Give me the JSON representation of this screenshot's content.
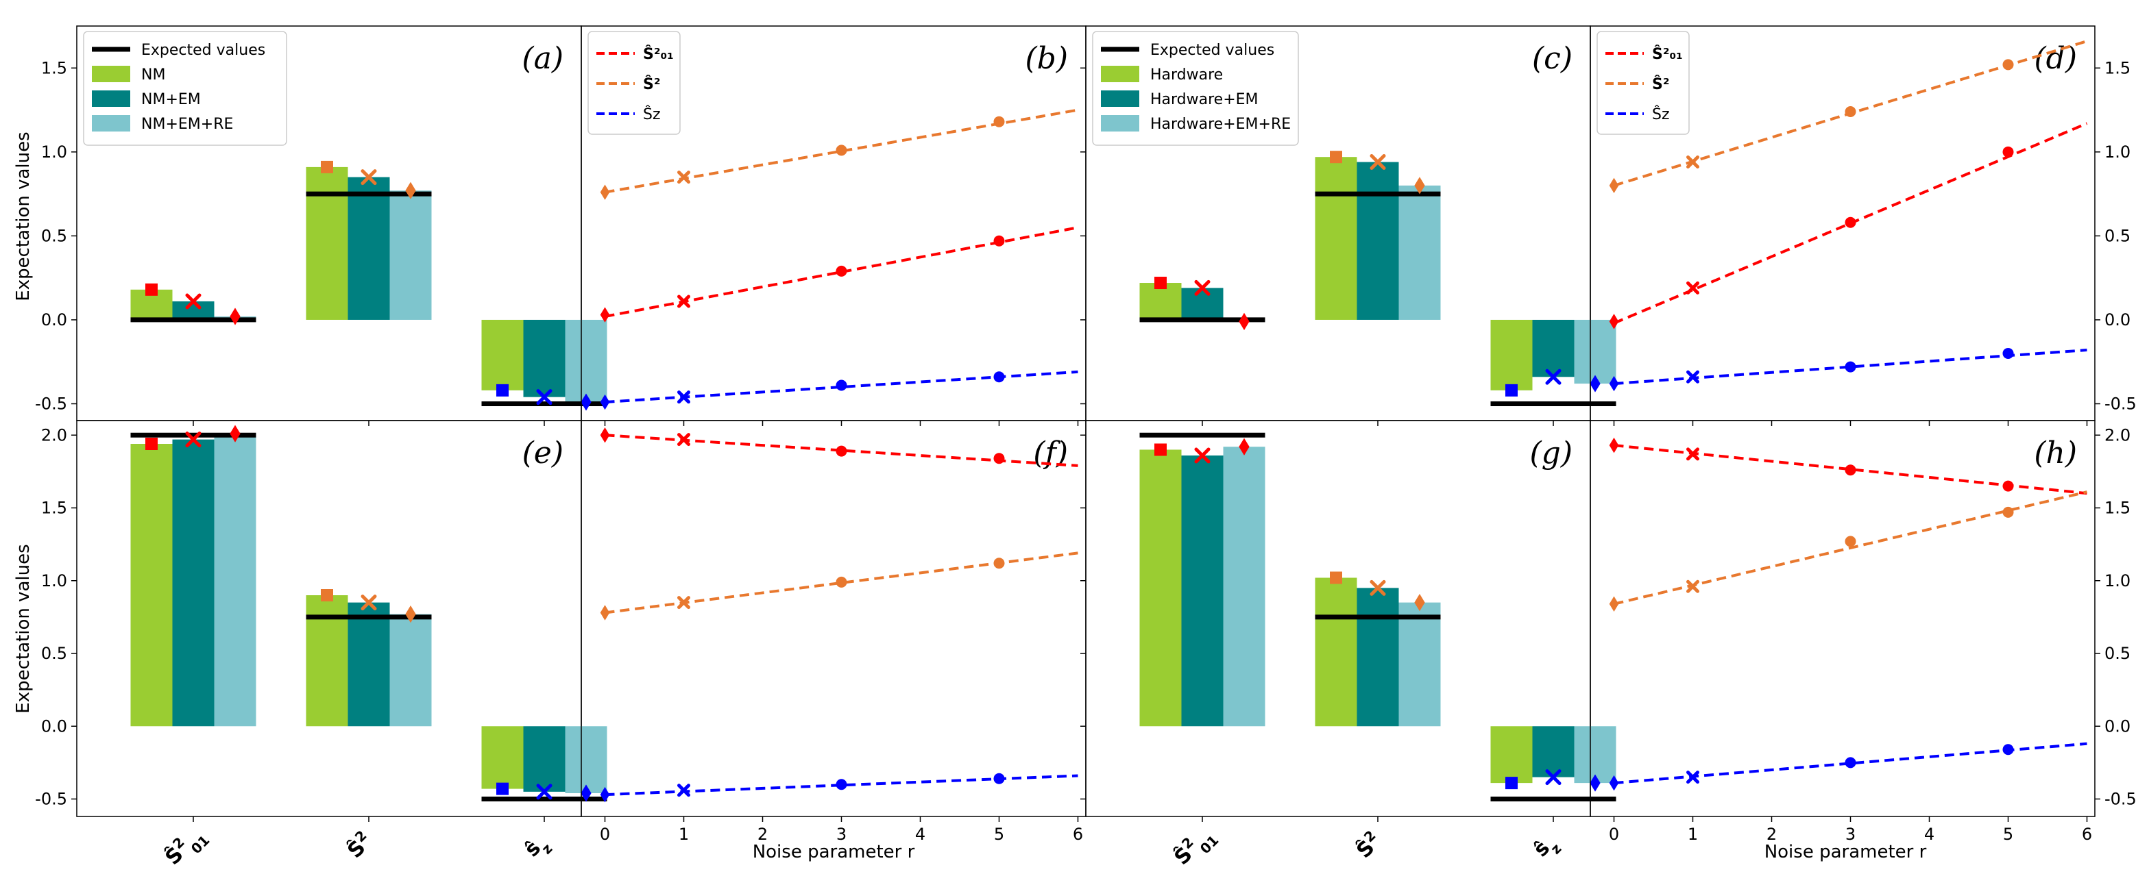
{
  "figure": {
    "ylabel": "Expectation values",
    "xlabel_line": "Noise parameter r",
    "colors": {
      "nm": "#9acd32",
      "em": "#008080",
      "re": "#7ec5cd",
      "expected": "#000000",
      "s01": "#ff0000",
      "s2": "#e8782e",
      "sz": "#0000ff"
    }
  },
  "chart_data": [
    {
      "panel": "a",
      "label": "(a)",
      "type": "bar",
      "categories": [
        "Ŝ²₀₁",
        "Ŝ²",
        "Ŝz"
      ],
      "legend": [
        "Expected values",
        "NM",
        "NM+EM",
        "NM+EM+RE"
      ],
      "series": [
        {
          "name": "NM",
          "values": [
            0.18,
            0.91,
            -0.42
          ]
        },
        {
          "name": "NM+EM",
          "values": [
            0.11,
            0.85,
            -0.46
          ]
        },
        {
          "name": "NM+EM+RE",
          "values": [
            0.02,
            0.77,
            -0.49
          ]
        }
      ],
      "expected": [
        0.0,
        0.75,
        -0.5
      ],
      "ylim": [
        -0.6,
        1.75
      ],
      "yticks": [
        "-0.5",
        "0.0",
        "0.5",
        "1.0",
        "1.5"
      ]
    },
    {
      "panel": "b",
      "label": "(b)",
      "type": "line",
      "legend": [
        "Ŝ²₀₁",
        "Ŝ²",
        "Ŝz"
      ],
      "x": [
        0,
        1,
        3,
        5
      ],
      "series": [
        {
          "name": "Ŝ²₀₁",
          "values": [
            0.03,
            0.11,
            0.29,
            0.47
          ],
          "fit": [
            0.02,
            0.55
          ]
        },
        {
          "name": "Ŝ²",
          "values": [
            0.76,
            0.85,
            1.01,
            1.18
          ],
          "fit": [
            0.76,
            1.25
          ]
        },
        {
          "name": "Ŝz",
          "values": [
            -0.49,
            -0.46,
            -0.39,
            -0.34
          ],
          "fit": [
            -0.49,
            -0.31
          ]
        }
      ],
      "xlim": [
        -0.3,
        6.1
      ],
      "xticks": [
        "0",
        "1",
        "2",
        "3",
        "4",
        "5",
        "6"
      ],
      "ylim": [
        -0.6,
        1.75
      ]
    },
    {
      "panel": "c",
      "label": "(c)",
      "type": "bar",
      "categories": [
        "Ŝ²₀₁",
        "Ŝ²",
        "Ŝz"
      ],
      "legend": [
        "Expected values",
        "Hardware",
        "Hardware+EM",
        "Hardware+EM+RE"
      ],
      "series": [
        {
          "name": "Hardware",
          "values": [
            0.22,
            0.97,
            -0.42
          ]
        },
        {
          "name": "Hardware+EM",
          "values": [
            0.19,
            0.94,
            -0.34
          ]
        },
        {
          "name": "Hardware+EM+RE",
          "values": [
            -0.01,
            0.8,
            -0.38
          ]
        }
      ],
      "expected": [
        0.0,
        0.75,
        -0.5
      ],
      "ylim": [
        -0.6,
        1.75
      ],
      "yticks": [
        "-0.5",
        "0.0",
        "0.5",
        "1.0",
        "1.5"
      ]
    },
    {
      "panel": "d",
      "label": "(d)",
      "type": "line",
      "legend": [
        "Ŝ²₀₁",
        "Ŝ²",
        "Ŝz"
      ],
      "x": [
        0,
        1,
        3,
        5
      ],
      "series": [
        {
          "name": "Ŝ²₀₁",
          "values": [
            -0.01,
            0.19,
            0.58,
            1.0
          ],
          "fit": [
            -0.02,
            1.17
          ]
        },
        {
          "name": "Ŝ²",
          "values": [
            0.8,
            0.94,
            1.24,
            1.52
          ],
          "fit": [
            0.8,
            1.66
          ]
        },
        {
          "name": "Ŝz",
          "values": [
            -0.38,
            -0.34,
            -0.28,
            -0.2
          ],
          "fit": [
            -0.38,
            -0.18
          ]
        }
      ],
      "xlim": [
        -0.3,
        6.1
      ],
      "xticks": [
        "0",
        "1",
        "2",
        "3",
        "4",
        "5",
        "6"
      ],
      "ylim": [
        -0.6,
        1.75
      ],
      "yticks": [
        "-0.5",
        "0.0",
        "0.5",
        "1.0",
        "1.5"
      ]
    },
    {
      "panel": "e",
      "label": "(e)",
      "type": "bar",
      "categories": [
        "Ŝ²₀₁",
        "Ŝ²",
        "Ŝz"
      ],
      "series": [
        {
          "name": "NM",
          "values": [
            1.94,
            0.9,
            -0.43
          ]
        },
        {
          "name": "NM+EM",
          "values": [
            1.97,
            0.85,
            -0.45
          ]
        },
        {
          "name": "NM+EM+RE",
          "values": [
            2.01,
            0.77,
            -0.46
          ]
        }
      ],
      "expected": [
        2.0,
        0.75,
        -0.5
      ],
      "ylim": [
        -0.62,
        2.1
      ],
      "yticks": [
        "-0.5",
        "0.0",
        "0.5",
        "1.0",
        "1.5",
        "2.0"
      ]
    },
    {
      "panel": "f",
      "label": "(f)",
      "type": "line",
      "x": [
        0,
        1,
        3,
        5
      ],
      "series": [
        {
          "name": "Ŝ²₀₁",
          "values": [
            2.0,
            1.97,
            1.89,
            1.84
          ],
          "fit": [
            2.0,
            1.79
          ]
        },
        {
          "name": "Ŝ²",
          "values": [
            0.78,
            0.85,
            0.99,
            1.12
          ],
          "fit": [
            0.78,
            1.19
          ]
        },
        {
          "name": "Ŝz",
          "values": [
            -0.47,
            -0.44,
            -0.4,
            -0.36
          ],
          "fit": [
            -0.47,
            -0.34
          ]
        }
      ],
      "xlim": [
        -0.3,
        6.1
      ],
      "xticks": [
        "0",
        "1",
        "2",
        "3",
        "4",
        "5",
        "6"
      ],
      "ylim": [
        -0.62,
        2.1
      ]
    },
    {
      "panel": "g",
      "label": "(g)",
      "type": "bar",
      "categories": [
        "Ŝ²₀₁",
        "Ŝ²",
        "Ŝz"
      ],
      "series": [
        {
          "name": "Hardware",
          "values": [
            1.9,
            1.02,
            -0.39
          ]
        },
        {
          "name": "Hardware+EM",
          "values": [
            1.86,
            0.95,
            -0.35
          ]
        },
        {
          "name": "Hardware+EM+RE",
          "values": [
            1.92,
            0.85,
            -0.39
          ]
        }
      ],
      "expected": [
        2.0,
        0.75,
        -0.5
      ],
      "ylim": [
        -0.62,
        2.1
      ],
      "yticks": [
        "-0.5",
        "0.0",
        "0.5",
        "1.0",
        "1.5",
        "2.0"
      ]
    },
    {
      "panel": "h",
      "label": "(h)",
      "type": "line",
      "x": [
        0,
        1,
        3,
        5
      ],
      "series": [
        {
          "name": "Ŝ²₀₁",
          "values": [
            1.93,
            1.87,
            1.76,
            1.65
          ],
          "fit": [
            1.93,
            1.6
          ]
        },
        {
          "name": "Ŝ²",
          "values": [
            0.84,
            0.96,
            1.27,
            1.47
          ],
          "fit": [
            0.84,
            1.61
          ]
        },
        {
          "name": "Ŝz",
          "values": [
            -0.39,
            -0.35,
            -0.25,
            -0.16
          ],
          "fit": [
            -0.39,
            -0.12
          ]
        }
      ],
      "xlim": [
        -0.3,
        6.1
      ],
      "xticks": [
        "0",
        "1",
        "2",
        "3",
        "4",
        "5",
        "6"
      ],
      "ylim": [
        -0.62,
        2.1
      ],
      "yticks": [
        "-0.5",
        "0.0",
        "0.5",
        "1.0",
        "1.5",
        "2.0"
      ]
    }
  ]
}
